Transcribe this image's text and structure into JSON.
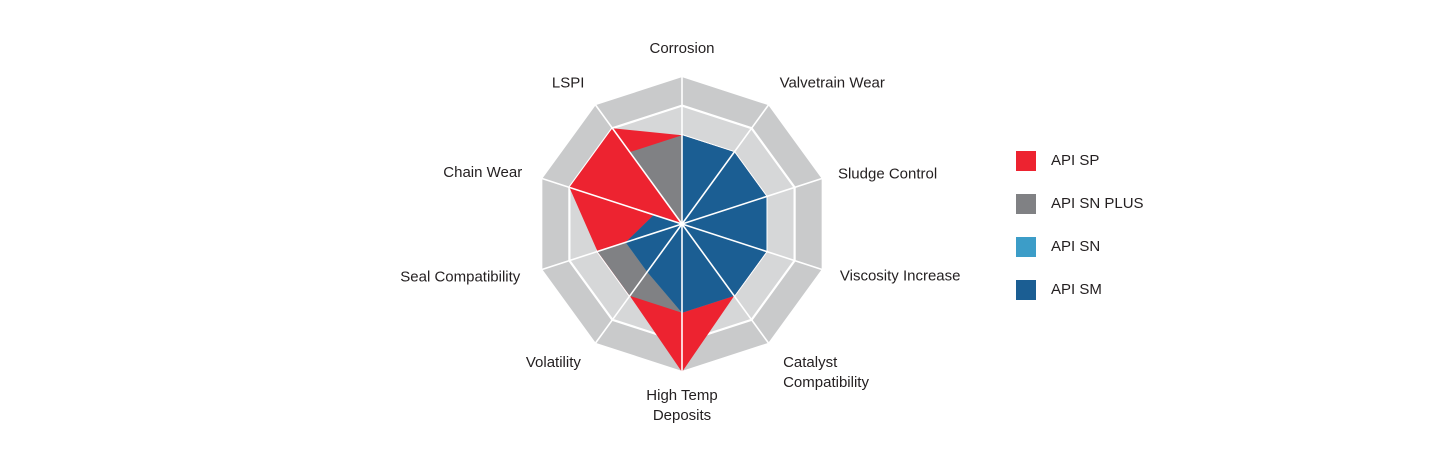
{
  "chart_data": {
    "type": "radar",
    "axes": [
      "Corrosion",
      "Valvetrain Wear",
      "Sludge Control",
      "Viscosity Increase",
      "Catalyst Compatibility",
      "High Temp Deposits",
      "Volatility",
      "Seal Compatibility",
      "Chain Wear",
      "LSPI"
    ],
    "axis_label_lines": [
      [
        "Corrosion"
      ],
      [
        "Valvetrain Wear"
      ],
      [
        "Sludge Control"
      ],
      [
        "Viscosity Increase"
      ],
      [
        "Catalyst",
        "Compatibility"
      ],
      [
        "High Temp",
        "Deposits"
      ],
      [
        "Volatility"
      ],
      [
        "Seal Compatibility"
      ],
      [
        "Chain Wear"
      ],
      [
        "LSPI"
      ]
    ],
    "rmax": 5,
    "rings": [
      1,
      2,
      3,
      4,
      5
    ],
    "series": [
      {
        "name": "API SP",
        "color": "#ed2330",
        "values": [
          3,
          3,
          3,
          3,
          3,
          5,
          3,
          3,
          4,
          4
        ]
      },
      {
        "name": "API SN PLUS",
        "color": "#808184",
        "values": [
          3,
          3,
          3,
          3,
          3,
          3,
          3,
          3,
          0,
          3
        ]
      },
      {
        "name": "API SN",
        "color": "#3c9dc8",
        "values": [
          3,
          3,
          3,
          3,
          3,
          3,
          2,
          2,
          1,
          0
        ]
      },
      {
        "name": "API SM",
        "color": "#1b5e93",
        "values": [
          3,
          3,
          3,
          3,
          3,
          3,
          2,
          2,
          1,
          0
        ]
      }
    ],
    "grid": true,
    "legend_position": "right"
  }
}
